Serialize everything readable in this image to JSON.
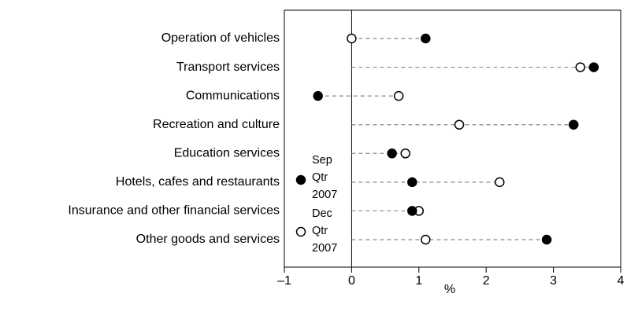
{
  "chart_data": {
    "type": "dot",
    "categories": [
      "Operation of vehicles",
      "Transport services",
      "Communications",
      "Recreation and culture",
      "Education services",
      "Hotels, cafes and restaurants",
      "Insurance and other financial services",
      "Other goods and services"
    ],
    "series": [
      {
        "name": "Sep Qtr 2007",
        "color": "#000000",
        "marker": "filled",
        "values": [
          1.1,
          3.6,
          -0.5,
          3.3,
          0.6,
          0.9,
          0.9,
          2.9
        ]
      },
      {
        "name": "Dec Qtr 2007",
        "color": "#000000",
        "marker": "open",
        "values": [
          0,
          3.4,
          0.7,
          1.6,
          0.8,
          2.2,
          1.0,
          1.1
        ]
      }
    ],
    "xlabel": "%",
    "xlim": [
      -1,
      4
    ],
    "xticks": [
      {
        "value": -1,
        "label": "–1"
      },
      0,
      1,
      2,
      3,
      4
    ]
  }
}
